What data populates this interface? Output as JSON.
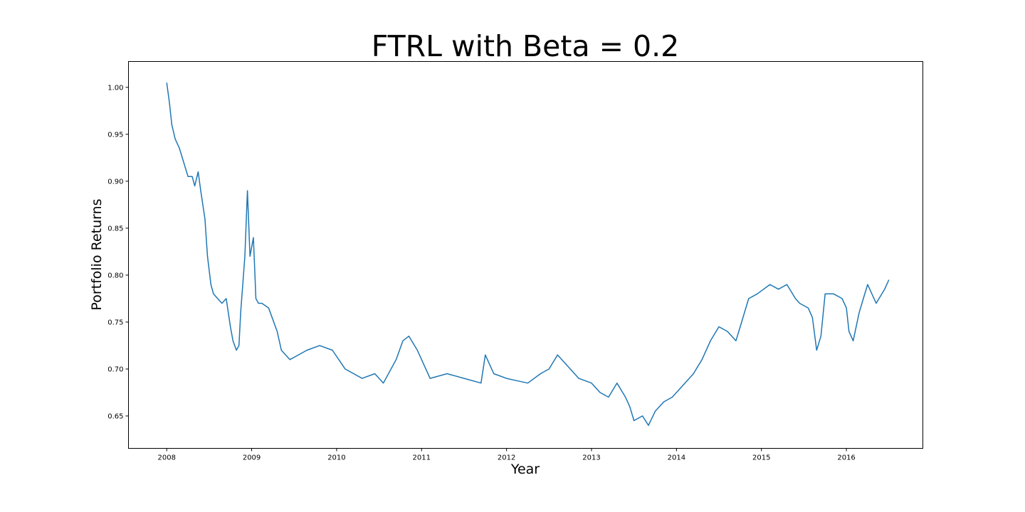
{
  "chart_data": {
    "type": "line",
    "title": "FTRL with Beta = 0.2",
    "xlabel": "Year",
    "ylabel": "Portfolio Returns",
    "xlim": [
      2007.55,
      2016.9
    ],
    "ylim": [
      0.6155,
      1.0275
    ],
    "xticks": [
      2008,
      2009,
      2010,
      2011,
      2012,
      2013,
      2014,
      2015,
      2016
    ],
    "xtick_labels": [
      "2008",
      "2009",
      "2010",
      "2011",
      "2012",
      "2013",
      "2014",
      "2015",
      "2016"
    ],
    "yticks": [
      0.65,
      0.7,
      0.75,
      0.8,
      0.85,
      0.9,
      0.95,
      1.0
    ],
    "ytick_labels": [
      "0.65",
      "0.70",
      "0.75",
      "0.80",
      "0.85",
      "0.90",
      "0.95",
      "1.00"
    ],
    "grid": false,
    "line_color": "#1f77b4",
    "series": [
      {
        "x": [
          2008.0,
          2008.03,
          2008.06,
          2008.1,
          2008.15,
          2008.2,
          2008.25,
          2008.3,
          2008.33,
          2008.37,
          2008.4,
          2008.45,
          2008.48,
          2008.52,
          2008.55,
          2008.6,
          2008.65,
          2008.7,
          2008.75,
          2008.78,
          2008.82,
          2008.85,
          2008.87,
          2008.92,
          2008.95,
          2008.98,
          2009.02,
          2009.05,
          2009.08,
          2009.12,
          2009.2,
          2009.3,
          2009.35,
          2009.45,
          2009.55,
          2009.65,
          2009.8,
          2009.95,
          2010.1,
          2010.3,
          2010.45,
          2010.55,
          2010.7,
          2010.78,
          2010.85,
          2010.95,
          2011.1,
          2011.3,
          2011.5,
          2011.7,
          2011.75,
          2011.85,
          2012.0,
          2012.1,
          2012.25,
          2012.4,
          2012.5,
          2012.6,
          2012.7,
          2012.85,
          2013.0,
          2013.1,
          2013.2,
          2013.3,
          2013.4,
          2013.45,
          2013.5,
          2013.6,
          2013.67,
          2013.75,
          2013.85,
          2013.95,
          2014.1,
          2014.2,
          2014.3,
          2014.4,
          2014.5,
          2014.6,
          2014.7,
          2014.75,
          2014.85,
          2014.95,
          2015.1,
          2015.2,
          2015.3,
          2015.4,
          2015.45,
          2015.55,
          2015.6,
          2015.65,
          2015.7,
          2015.75,
          2015.85,
          2015.95,
          2016.0,
          2016.03,
          2016.08,
          2016.15,
          2016.2,
          2016.25,
          2016.35,
          2016.45,
          2016.5
        ],
        "y": [
          1.005,
          0.985,
          0.96,
          0.945,
          0.935,
          0.92,
          0.905,
          0.905,
          0.895,
          0.91,
          0.89,
          0.86,
          0.82,
          0.79,
          0.78,
          0.775,
          0.77,
          0.775,
          0.745,
          0.73,
          0.72,
          0.725,
          0.76,
          0.82,
          0.89,
          0.82,
          0.84,
          0.775,
          0.77,
          0.77,
          0.765,
          0.74,
          0.72,
          0.71,
          0.715,
          0.72,
          0.725,
          0.72,
          0.7,
          0.69,
          0.695,
          0.685,
          0.71,
          0.73,
          0.735,
          0.72,
          0.69,
          0.695,
          0.69,
          0.685,
          0.715,
          0.695,
          0.69,
          0.688,
          0.685,
          0.695,
          0.7,
          0.715,
          0.705,
          0.69,
          0.685,
          0.675,
          0.67,
          0.685,
          0.67,
          0.66,
          0.645,
          0.65,
          0.64,
          0.655,
          0.665,
          0.67,
          0.685,
          0.695,
          0.71,
          0.73,
          0.745,
          0.74,
          0.73,
          0.745,
          0.775,
          0.78,
          0.79,
          0.785,
          0.79,
          0.775,
          0.77,
          0.765,
          0.755,
          0.72,
          0.735,
          0.78,
          0.78,
          0.775,
          0.765,
          0.74,
          0.73,
          0.76,
          0.775,
          0.79,
          0.77,
          0.785,
          0.795
        ]
      }
    ]
  }
}
